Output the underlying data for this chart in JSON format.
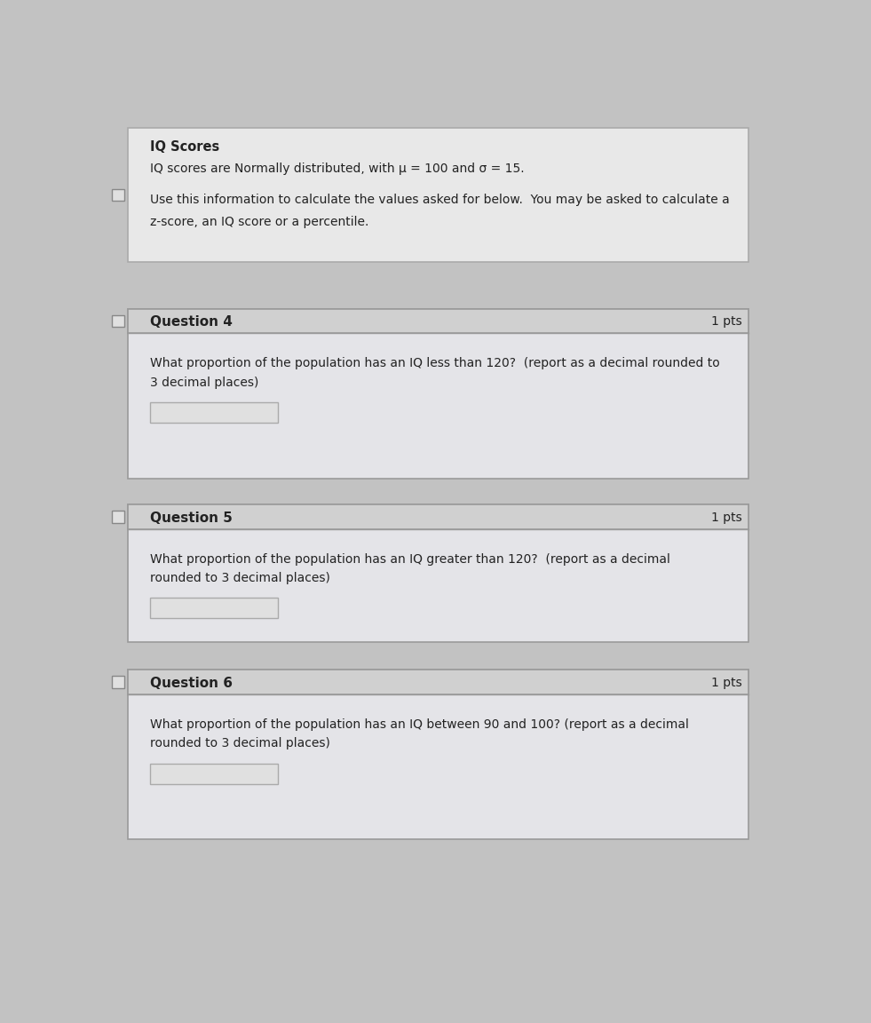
{
  "bg_color": "#c2c2c2",
  "header_box": {
    "title": "IQ Scores",
    "title_fontsize": 10.5,
    "lines": [
      "IQ scores are Normally distributed, with μ = 100 and σ = 15.",
      "",
      "Use this information to calculate the values asked for below.  You may be asked to calculate a",
      "z-score, an IQ score or a percentile."
    ],
    "fontsize": 10.0,
    "box_color": "#e8e8e8",
    "border_color": "#aaaaaa"
  },
  "questions": [
    {
      "number": "Question 4",
      "pts": "1 pts",
      "body_lines": [
        "What proportion of the population has an IQ less than 120?  (report as a decimal rounded to",
        "3 decimal places)"
      ],
      "fontsize": 10.0
    },
    {
      "number": "Question 5",
      "pts": "1 pts",
      "body_lines": [
        "What proportion of the population has an IQ greater than 120?  (report as a decimal",
        "rounded to 3 decimal places)"
      ],
      "fontsize": 10.0
    },
    {
      "number": "Question 6",
      "pts": "1 pts",
      "body_lines": [
        "What proportion of the population has an IQ between 90 and 100? (report as a decimal",
        "rounded to 3 decimal places)"
      ],
      "fontsize": 10.0
    }
  ],
  "header_bar_color": "#d0d0d0",
  "content_color": "#e4e4e8",
  "box_border_color": "#9a9a9a",
  "input_box_color": "#e0e0e0",
  "input_box_border": "#aaaaaa",
  "checkbox_face": "#e0e0e0",
  "checkbox_edge": "#888888",
  "text_color": "#222222"
}
